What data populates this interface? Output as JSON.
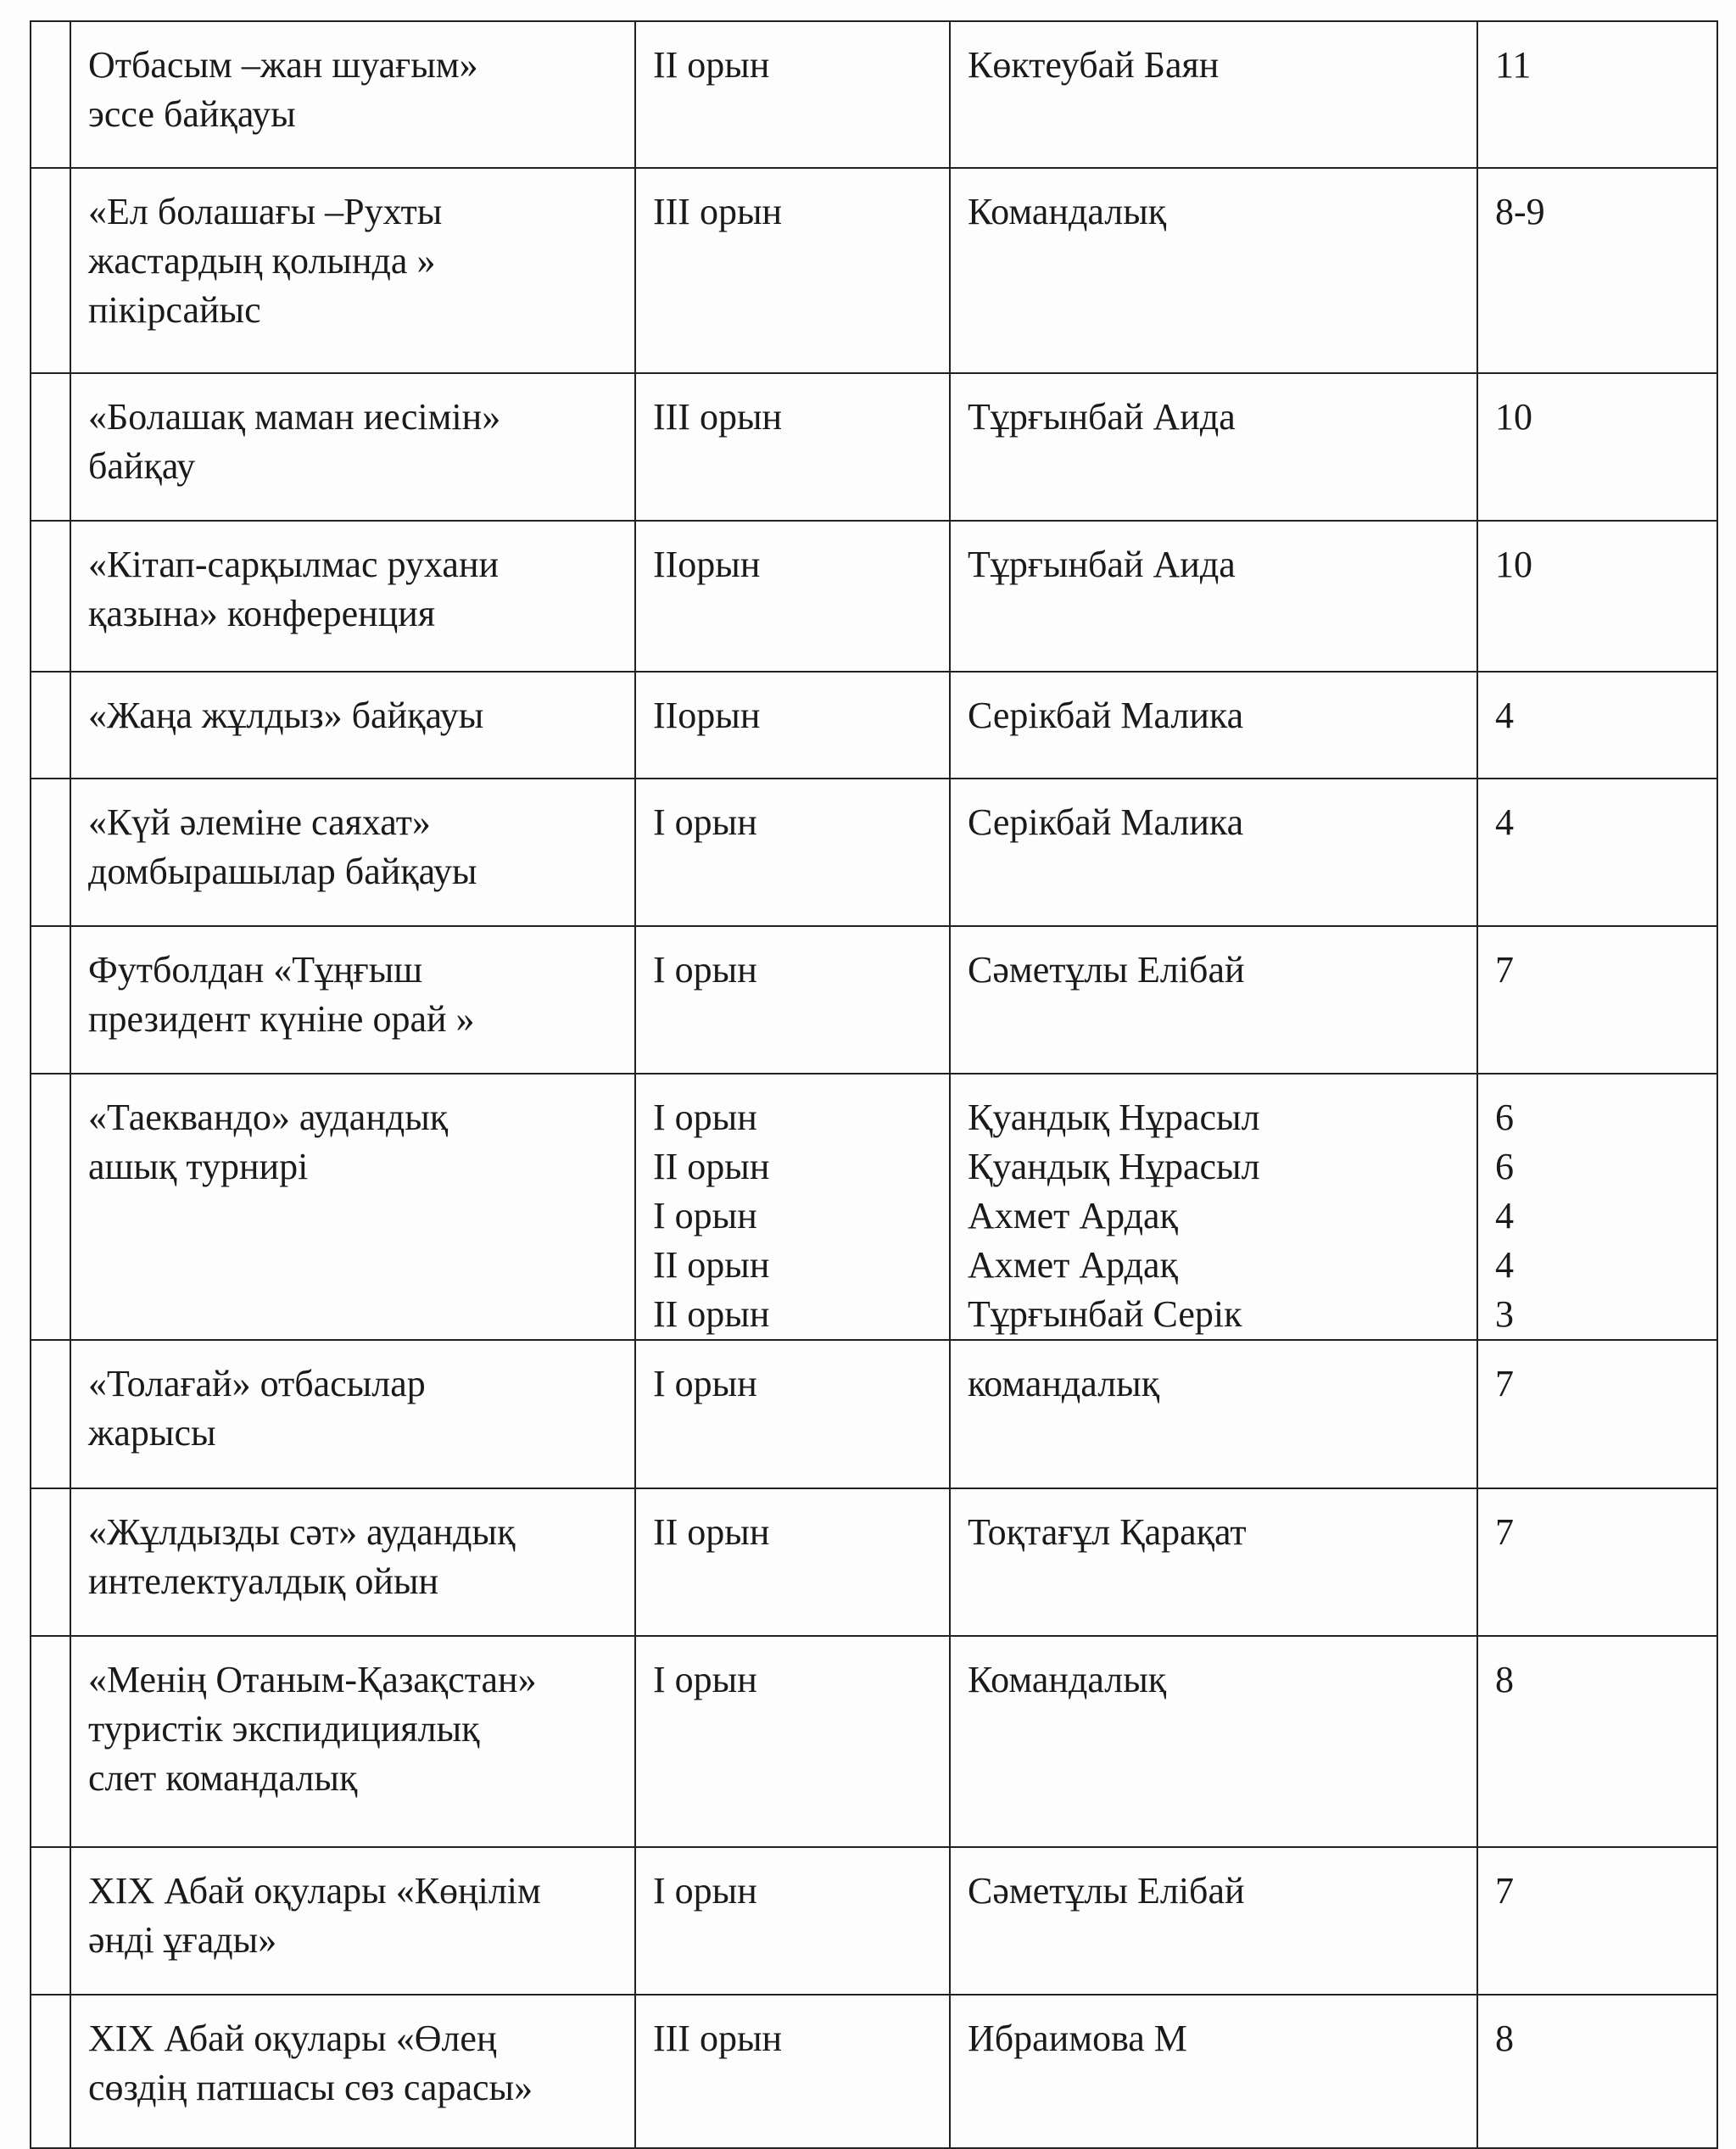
{
  "rows": [
    {
      "event": [
        "Отбасым –жан шуағым»",
        "эссе байқауы"
      ],
      "place": [
        "II орын"
      ],
      "participant": [
        "Көктеубай Баян"
      ],
      "grade": [
        "11"
      ]
    },
    {
      "event": [
        "«Ел болашағы –Рухты",
        "жастардың қолында »",
        "пікірсайыс"
      ],
      "place": [
        "III орын"
      ],
      "participant": [
        "Командалық"
      ],
      "grade": [
        "8-9"
      ]
    },
    {
      "event": [
        "«Болашақ маман иесімін»",
        "байқау"
      ],
      "place": [
        "III орын"
      ],
      "participant": [
        "Тұрғынбай Аида"
      ],
      "grade": [
        "10"
      ]
    },
    {
      "event": [
        "«Кітап-сарқылмас рухани",
        "қазына» конференция"
      ],
      "place": [
        "IIорын"
      ],
      "participant": [
        "Тұрғынбай Аида"
      ],
      "grade": [
        "10"
      ]
    },
    {
      "event": [
        "«Жаңа жұлдыз» байқауы"
      ],
      "place": [
        "IIорын"
      ],
      "participant": [
        "Серікбай Малика"
      ],
      "grade": [
        "4"
      ]
    },
    {
      "event": [
        "«Күй әлеміне саяхат»",
        "домбырашылар байқауы"
      ],
      "place": [
        "I орын"
      ],
      "participant": [
        "Серікбай Малика"
      ],
      "grade": [
        "4"
      ]
    },
    {
      "event": [
        "Футболдан «Тұңғыш",
        "президент күніне орай »"
      ],
      "place": [
        "I орын"
      ],
      "participant": [
        "Сәметұлы Елібай"
      ],
      "grade": [
        "7"
      ]
    },
    {
      "event": [
        "«Таеквандо»  аудандық",
        "ашық турнирі"
      ],
      "place": [
        "I орын",
        "II орын",
        "I орын",
        "II орын",
        "II орын"
      ],
      "participant": [
        "Қуандық Нұрасыл",
        "Қуандық Нұрасыл",
        "Ахмет Ардақ",
        "Ахмет Ардақ",
        "Тұрғынбай Серік"
      ],
      "grade": [
        "6",
        "6",
        "4",
        "4",
        "3"
      ]
    },
    {
      "event": [
        "«Толағай» отбасылар",
        "жарысы"
      ],
      "place": [
        "I орын"
      ],
      "participant": [
        "командалық"
      ],
      "grade": [
        "7"
      ]
    },
    {
      "event": [
        "«Жұлдызды сәт» аудандық",
        "интелектуалдық ойын"
      ],
      "place": [
        "II орын"
      ],
      "participant": [
        "Тоқтағұл Қарақат"
      ],
      "grade": [
        "7"
      ]
    },
    {
      "event": [
        "«Менің Отаным-Қазақстан»",
        "туристік экспидициялық",
        "слет командалық"
      ],
      "place": [
        "I орын"
      ],
      "participant": [
        "Командалық"
      ],
      "grade": [
        "8"
      ]
    },
    {
      "event": [
        "XIX Абай оқулары «Көңілім",
        "әнді ұғады»"
      ],
      "place": [
        "I орын"
      ],
      "participant": [
        "Сәметұлы Елібай"
      ],
      "grade": [
        "7"
      ]
    },
    {
      "event": [
        "XIX Абай оқулары «Өлең",
        "сөздің патшасы сөз сарасы»"
      ],
      "place": [
        "III орын"
      ],
      "participant": [
        "Ибраимова М"
      ],
      "grade": [
        "8"
      ]
    }
  ]
}
